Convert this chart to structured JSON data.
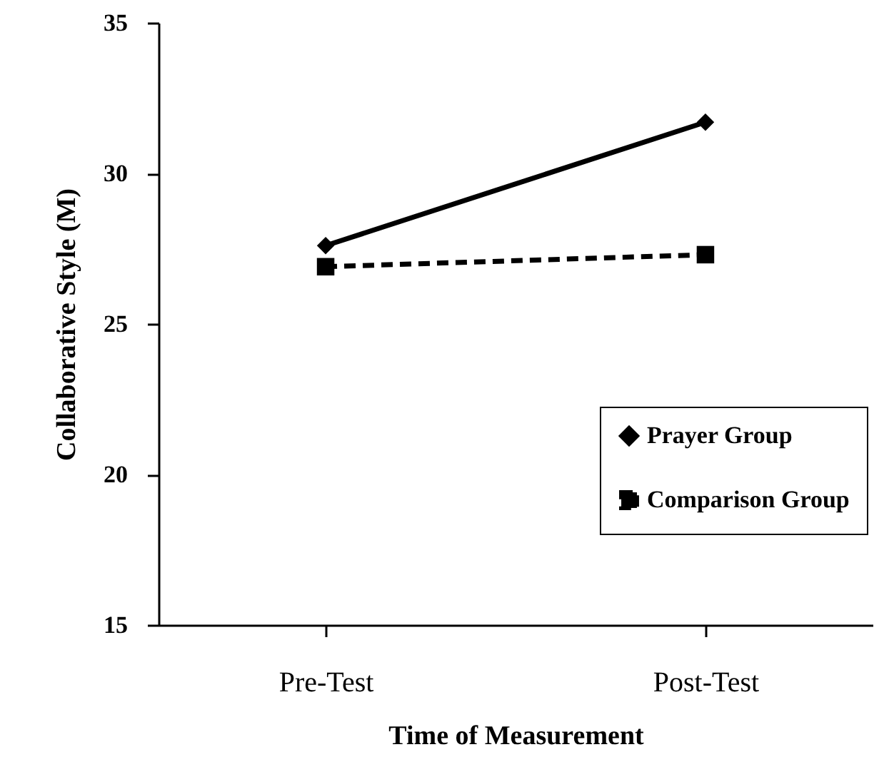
{
  "chart_data": {
    "type": "line",
    "xlabel": "Time of Measurement",
    "ylabel": "Collaborative Style (M)",
    "categories": [
      "Pre-Test",
      "Post-Test"
    ],
    "series": [
      {
        "name": "Prayer Group",
        "color": "#000000",
        "marker": "diamond",
        "line_style": "solid",
        "values": [
          27.6,
          31.7
        ]
      },
      {
        "name": "Comparison Group",
        "color": "#000000",
        "marker": "square",
        "line_style": "dashed",
        "values": [
          26.9,
          27.3
        ]
      }
    ],
    "ylim": [
      15,
      35
    ],
    "yticks": [
      15,
      20,
      25,
      30,
      35
    ],
    "grid": false,
    "legend": "bottom right"
  }
}
